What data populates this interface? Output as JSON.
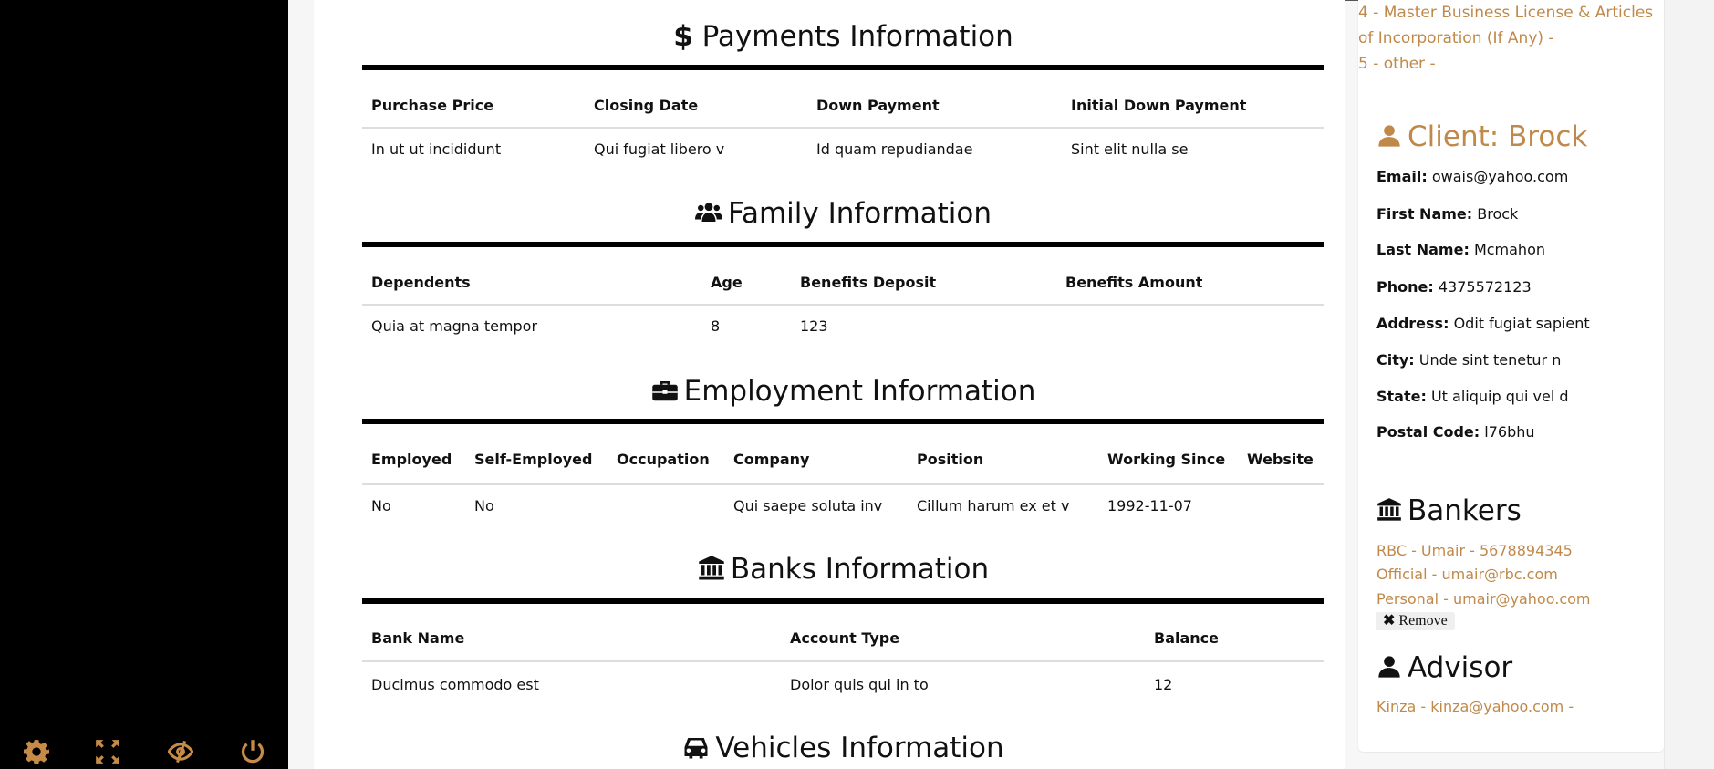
{
  "sidebar": {
    "icons": [
      "gear-icon",
      "expand-icon",
      "eye-slash-icon",
      "power-icon"
    ],
    "icon_color": "#c68c47"
  },
  "main": {
    "payments": {
      "title": "Payments Information",
      "icon": "dollar-icon",
      "headers": [
        "Purchase Price",
        "Closing Date",
        "Down Payment",
        "Initial Down Payment"
      ],
      "rows": [
        [
          "In ut ut incididunt",
          "Qui fugiat libero v",
          "Id quam repudiandae",
          "Sint elit nulla se"
        ]
      ]
    },
    "family": {
      "title": "Family Information",
      "icon": "users-icon",
      "headers": [
        "Dependents",
        "Age",
        "Benefits Deposit",
        "Benefits Amount"
      ],
      "rows": [
        [
          "Quia at magna tempor",
          "8",
          "123",
          ""
        ]
      ]
    },
    "employment": {
      "title": "Employment Information",
      "icon": "briefcase-icon",
      "headers": [
        "Employed",
        "Self-Employed",
        "Occupation",
        "Company",
        "Position",
        "Working Since",
        "Website"
      ],
      "rows": [
        [
          "No",
          "No",
          "",
          "Qui saepe soluta inv",
          "Cillum harum ex et v",
          "1992-11-07",
          ""
        ]
      ]
    },
    "banks": {
      "title": "Banks Information",
      "icon": "bank-icon",
      "headers": [
        "Bank Name",
        "Account Type",
        "Balance"
      ],
      "rows": [
        [
          "Ducimus commodo est",
          "Dolor quis qui in to",
          "12"
        ]
      ]
    },
    "vehicles": {
      "title": "Vehicles Information",
      "icon": "car-icon"
    }
  },
  "right": {
    "accent": "#c0894a",
    "documents": [
      "4 - Master Business License & Articles of Incorporation (If Any) -",
      "5 - other -"
    ],
    "client": {
      "title": "Client: Brock",
      "fields": [
        {
          "label": "Email:",
          "value": "owais@yahoo.com"
        },
        {
          "label": "First Name:",
          "value": "Brock"
        },
        {
          "label": "Last Name:",
          "value": "Mcmahon"
        },
        {
          "label": "Phone:",
          "value": "4375572123"
        },
        {
          "label": "Address:",
          "value": "Odit fugiat sapient"
        },
        {
          "label": "City:",
          "value": "Unde sint tenetur n"
        },
        {
          "label": "State:",
          "value": "Ut aliquip qui vel d"
        },
        {
          "label": "Postal Code:",
          "value": "l76bhu"
        }
      ]
    },
    "bankers": {
      "title": "Bankers",
      "lines": [
        "RBC - Umair - 5678894345",
        "Official - umair@rbc.com",
        "Personal - umair@yahoo.com"
      ],
      "remove_label": "Remove"
    },
    "advisor": {
      "title": "Advisor",
      "lines": [
        "Kinza - kinza@yahoo.com -"
      ]
    }
  }
}
